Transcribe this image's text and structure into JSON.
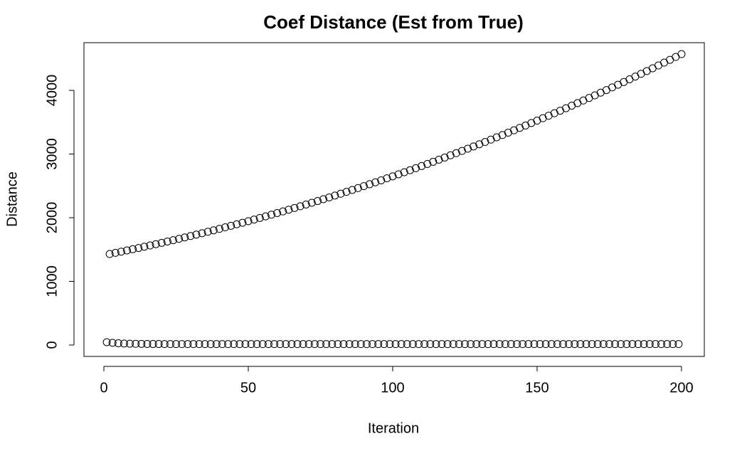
{
  "chart_data": {
    "type": "scatter",
    "title": "Coef Distance (Est from True)",
    "x_label": "Iteration",
    "y_label": "Distance",
    "color": "#000000",
    "x": [
      1,
      2,
      3,
      4,
      5,
      6,
      7,
      8,
      9,
      10,
      11,
      12,
      13,
      14,
      15,
      16,
      17,
      18,
      19,
      20,
      21,
      22,
      23,
      24,
      25,
      26,
      27,
      28,
      29,
      30,
      31,
      32,
      33,
      34,
      35,
      36,
      37,
      38,
      39,
      40,
      41,
      42,
      43,
      44,
      45,
      46,
      47,
      48,
      49,
      50,
      51,
      52,
      53,
      54,
      55,
      56,
      57,
      58,
      59,
      60,
      61,
      62,
      63,
      64,
      65,
      66,
      67,
      68,
      69,
      70,
      71,
      72,
      73,
      74,
      75,
      76,
      77,
      78,
      79,
      80,
      81,
      82,
      83,
      84,
      85,
      86,
      87,
      88,
      89,
      90,
      91,
      92,
      93,
      94,
      95,
      96,
      97,
      98,
      99,
      100,
      101,
      102,
      103,
      104,
      105,
      106,
      107,
      108,
      109,
      110,
      111,
      112,
      113,
      114,
      115,
      116,
      117,
      118,
      119,
      120,
      121,
      122,
      123,
      124,
      125,
      126,
      127,
      128,
      129,
      130,
      131,
      132,
      133,
      134,
      135,
      136,
      137,
      138,
      139,
      140,
      141,
      142,
      143,
      144,
      145,
      146,
      147,
      148,
      149,
      150,
      151,
      152,
      153,
      154,
      155,
      156,
      157,
      158,
      159,
      160,
      161,
      162,
      163,
      164,
      165,
      166,
      167,
      168,
      169,
      170,
      171,
      172,
      173,
      174,
      175,
      176,
      177,
      178,
      179,
      180,
      181,
      182,
      183,
      184,
      185,
      186,
      187,
      188,
      189,
      190,
      191,
      192,
      193,
      194,
      195,
      196,
      197,
      198,
      199,
      200
    ],
    "values": [
      45,
      1430,
      35,
      1448,
      28,
      1467,
      24,
      1486,
      21,
      1505,
      19,
      1524,
      18,
      1544,
      17,
      1564,
      16,
      1584,
      16,
      1605,
      15,
      1626,
      15,
      1647,
      15,
      1668,
      15,
      1690,
      15,
      1712,
      15,
      1734,
      15,
      1756,
      15,
      1779,
      15,
      1802,
      15,
      1825,
      15,
      1849,
      15,
      1873,
      15,
      1897,
      15,
      1921,
      15,
      1946,
      15,
      1971,
      15,
      1996,
      15,
      2021,
      15,
      2047,
      15,
      2073,
      15,
      2099,
      15,
      2126,
      15,
      2153,
      15,
      2180,
      15,
      2207,
      15,
      2235,
      15,
      2262,
      15,
      2291,
      15,
      2319,
      15,
      2348,
      15,
      2377,
      15,
      2406,
      15,
      2436,
      15,
      2465,
      15,
      2496,
      15,
      2526,
      15,
      2556,
      15,
      2587,
      15,
      2619,
      15,
      2650,
      15,
      2682,
      15,
      2714,
      15,
      2746,
      15,
      2778,
      15,
      2811,
      15,
      2844,
      15,
      2878,
      15,
      2911,
      15,
      2945,
      15,
      2980,
      15,
      3014,
      15,
      3049,
      15,
      3084,
      15,
      3119,
      15,
      3154,
      15,
      3190,
      15,
      3226,
      15,
      3263,
      15,
      3299,
      15,
      3336,
      15,
      3373,
      15,
      3411,
      15,
      3448,
      15,
      3487,
      15,
      3525,
      15,
      3563,
      15,
      3602,
      15,
      3641,
      15,
      3681,
      15,
      3720,
      15,
      3760,
      15,
      3800,
      15,
      3841,
      15,
      3881,
      15,
      3922,
      15,
      3964,
      15,
      4005,
      15,
      4047,
      15,
      4089,
      15,
      4131,
      15,
      4174,
      15,
      4217,
      15,
      4260,
      15,
      4304,
      15,
      4347,
      15,
      4391,
      15,
      4436,
      15,
      4480,
      15,
      4525,
      15,
      4570
    ],
    "xlim": [
      -6.9,
      207.9
    ],
    "ylim": [
      -179,
      4749
    ],
    "xticks": [
      0,
      50,
      100,
      150,
      200
    ],
    "yticks": [
      0,
      1000,
      2000,
      3000,
      4000
    ]
  }
}
